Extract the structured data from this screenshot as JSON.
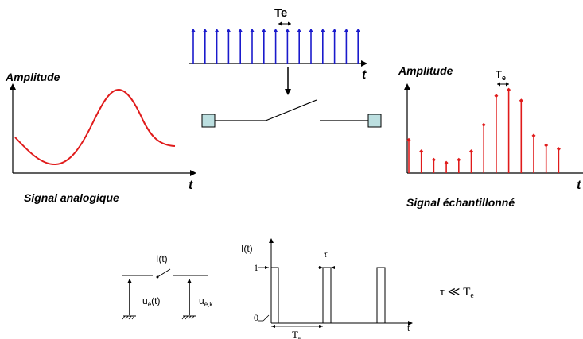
{
  "top": {
    "period_label": "Te",
    "axis_label": "t",
    "impulse_color": "#1a1acc"
  },
  "analog": {
    "ylabel": "Amplitude",
    "xlabel": "t",
    "caption": "Signal analogique",
    "color": "#e01b1b"
  },
  "sampled": {
    "ylabel": "Amplitude",
    "period_main": "T",
    "period_sub": "e",
    "xlabel": "t",
    "caption": "Signal échantillonné",
    "color": "#e01b1b",
    "samples": [
      0.55,
      0.36,
      0.22,
      0.17,
      0.22,
      0.36,
      0.8,
      1.28,
      1.38,
      1.2,
      0.62,
      0.46,
      0.4
    ]
  },
  "switch_block": {
    "box_color": "#bcdfe0"
  },
  "bottom": {
    "switch_label": "I(t)",
    "input_main": "u",
    "input_sub": "e",
    "input_arg": "(t)",
    "output_main": "u",
    "output_sub": "e,k",
    "plot_ylabel": "I(t)",
    "tick_one": "1",
    "tick_zero": "0",
    "tau_label": "τ",
    "period_main": "T",
    "period_sub": "e",
    "xlabel": "t",
    "relation_lhs": "τ",
    "relation_op": "≪",
    "relation_rhs_main": "T",
    "relation_rhs_sub": "e"
  }
}
